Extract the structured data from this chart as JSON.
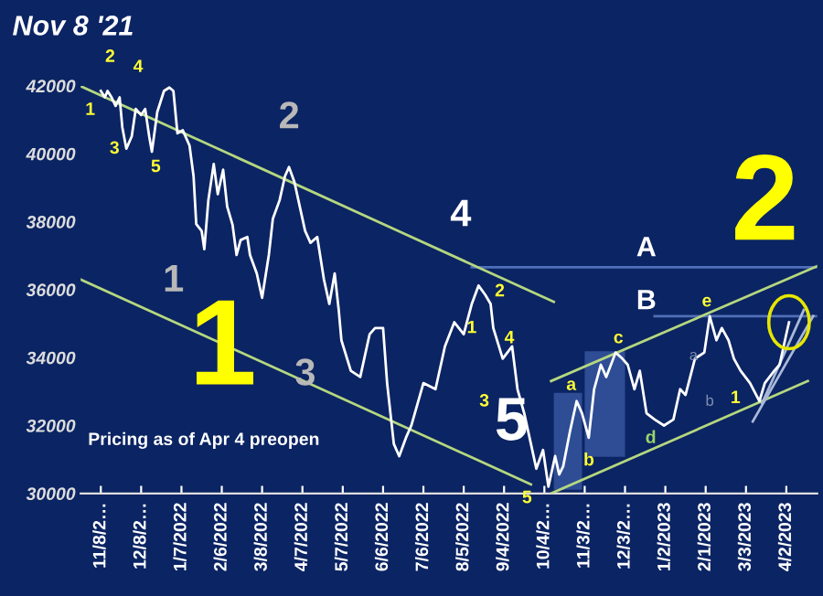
{
  "chart_data": {
    "type": "line",
    "title": "Nov 8 '21",
    "xlim": [
      "2021-10-24",
      "2023-04-25"
    ],
    "ylim": [
      30000,
      42000
    ],
    "yticks": [
      30000,
      32000,
      34000,
      36000,
      38000,
      40000,
      42000
    ],
    "xticks": [
      {
        "value": "2021-11-08",
        "label": "11/8/2…"
      },
      {
        "value": "2021-12-08",
        "label": "12/8/2…"
      },
      {
        "value": "2022-01-07",
        "label": "1/7/2022"
      },
      {
        "value": "2022-02-06",
        "label": "2/6/2022"
      },
      {
        "value": "2022-03-08",
        "label": "3/8/2022"
      },
      {
        "value": "2022-04-07",
        "label": "4/7/2022"
      },
      {
        "value": "2022-05-07",
        "label": "5/7/2022"
      },
      {
        "value": "2022-06-06",
        "label": "6/6/2022"
      },
      {
        "value": "2022-07-06",
        "label": "7/6/2022"
      },
      {
        "value": "2022-08-05",
        "label": "8/5/2022"
      },
      {
        "value": "2022-09-04",
        "label": "9/4/2022"
      },
      {
        "value": "2022-10-04",
        "label": "10/4/2…"
      },
      {
        "value": "2022-11-03",
        "label": "11/3/2…"
      },
      {
        "value": "2022-12-03",
        "label": "12/3/2…"
      },
      {
        "value": "2023-01-02",
        "label": "1/2/2023"
      },
      {
        "value": "2023-02-01",
        "label": "2/1/2023"
      },
      {
        "value": "2023-03-03",
        "label": "3/3/2023"
      },
      {
        "value": "2023-04-02",
        "label": "4/2/2023"
      }
    ],
    "grid": false,
    "legend": false,
    "marker": "none",
    "line_style": "solid",
    "series": [
      {
        "color": "#3b5ba5",
        "x": [
          "2022-10-11",
          "2022-11-01"
        ],
        "values": [
          null,
          null
        ],
        "lower": [
          30110,
          30110
        ],
        "upper": [
          32960,
          32960
        ]
      },
      {
        "color": "#3b5ba5",
        "x": [
          "2022-11-03",
          "2022-12-03"
        ],
        "values": [
          null,
          null
        ],
        "lower": [
          31080,
          31080
        ],
        "upper": [
          34190,
          34190
        ]
      },
      {
        "color": "#4f6fb8",
        "x": [
          "2022-08-11",
          "2023-04-25"
        ],
        "values": [
          36660,
          36660
        ]
      },
      {
        "color": "#4f6fb8",
        "x": [
          "2022-12-25",
          "2023-04-25"
        ],
        "values": [
          35220,
          35220
        ]
      },
      {
        "color": "#b5d77f",
        "x": [
          "2021-10-24",
          "2022-10-11"
        ],
        "values": [
          41990,
          35640
        ]
      },
      {
        "color": "#b5d77f",
        "x": [
          "2021-10-24",
          "2022-09-24"
        ],
        "values": [
          36300,
          30270
        ]
      },
      {
        "color": "#b5d77f",
        "x": [
          "2022-10-09",
          "2023-04-25"
        ],
        "values": [
          33310,
          36690
        ]
      },
      {
        "color": "#b5d77f",
        "x": [
          "2022-10-09",
          "2023-04-18"
        ],
        "values": [
          30000,
          33310
        ]
      },
      {
        "color": "#a9b8d8",
        "x": [
          "2023-03-08",
          "2023-04-22"
        ],
        "values": [
          32120,
          35220
        ]
      },
      {
        "color": "#a9b8d8",
        "x": [
          "2023-03-15",
          "2023-04-15"
        ],
        "values": [
          32660,
          35400
        ]
      },
      {
        "color": "#ffffff",
        "x": [
          "2021-11-08",
          "2021-11-11",
          "2021-11-13",
          "2021-11-16",
          "2021-11-19",
          "2021-11-22",
          "2021-11-24",
          "2021-11-27",
          "2021-12-01",
          "2021-12-04",
          "2021-12-08",
          "2021-12-11",
          "2021-12-14",
          "2021-12-16",
          "2021-12-20",
          "2021-12-25",
          "2021-12-29",
          "2022-01-01",
          "2022-01-04",
          "2022-01-08",
          "2022-01-13",
          "2022-01-16",
          "2022-01-18",
          "2022-01-22",
          "2022-01-24",
          "2022-01-27",
          "2022-01-31",
          "2022-02-03",
          "2022-02-07",
          "2022-02-10",
          "2022-02-14",
          "2022-02-17",
          "2022-02-20",
          "2022-02-25",
          "2022-02-27",
          "2022-03-04",
          "2022-03-08",
          "2022-03-13",
          "2022-03-16",
          "2022-03-21",
          "2022-03-25",
          "2022-03-28",
          "2022-04-01",
          "2022-04-04",
          "2022-04-09",
          "2022-04-13",
          "2022-04-18",
          "2022-04-23",
          "2022-04-27",
          "2022-05-01",
          "2022-05-04",
          "2022-05-06",
          "2022-05-13",
          "2022-05-20",
          "2022-05-27",
          "2022-05-31",
          "2022-06-06",
          "2022-06-09",
          "2022-06-14",
          "2022-06-18",
          "2022-06-23",
          "2022-06-27",
          "2022-07-06",
          "2022-07-15",
          "2022-07-22",
          "2022-07-29",
          "2022-08-05",
          "2022-08-11",
          "2022-08-16",
          "2022-08-21",
          "2022-08-25",
          "2022-08-27",
          "2022-09-03",
          "2022-09-10",
          "2022-09-14",
          "2022-09-19",
          "2022-09-24",
          "2022-09-28",
          "2022-10-03",
          "2022-10-07",
          "2022-10-12",
          "2022-10-15",
          "2022-10-18",
          "2022-10-23",
          "2022-10-28",
          "2022-11-01",
          "2022-11-06",
          "2022-11-10",
          "2022-11-15",
          "2022-11-19",
          "2022-11-26",
          "2022-12-01",
          "2022-12-05",
          "2022-12-10",
          "2022-12-14",
          "2022-12-19",
          "2022-12-25",
          "2023-01-01",
          "2023-01-08",
          "2023-01-13",
          "2023-01-17",
          "2023-01-24",
          "2023-01-31",
          "2023-02-04",
          "2023-02-09",
          "2023-02-13",
          "2023-02-18",
          "2023-02-22",
          "2023-02-27",
          "2023-03-06",
          "2023-03-13",
          "2023-03-17",
          "2023-03-24",
          "2023-03-28",
          "2023-04-02",
          "2023-04-04"
        ],
        "values": [
          41850,
          41660,
          41850,
          41660,
          41410,
          41660,
          40780,
          40150,
          40510,
          41320,
          41140,
          41320,
          40510,
          40060,
          41230,
          41850,
          41950,
          41850,
          40600,
          40690,
          40240,
          39340,
          37930,
          37730,
          37190,
          38630,
          39700,
          38810,
          39530,
          38450,
          37910,
          37020,
          37460,
          37550,
          37020,
          36480,
          35760,
          37020,
          38090,
          38630,
          39340,
          39610,
          39170,
          38630,
          37730,
          37380,
          37550,
          36300,
          35580,
          36480,
          35400,
          34510,
          33610,
          33430,
          34690,
          34870,
          34870,
          33250,
          31460,
          31100,
          31640,
          32000,
          33250,
          33070,
          34330,
          35040,
          34690,
          35580,
          36120,
          35850,
          35580,
          34870,
          33970,
          34330,
          33070,
          32360,
          31460,
          30730,
          31280,
          30200,
          31100,
          30560,
          30800,
          31820,
          32720,
          32360,
          31640,
          33070,
          33790,
          33430,
          34150,
          33970,
          33790,
          33070,
          33610,
          32360,
          32180,
          32000,
          32180,
          33070,
          32900,
          33970,
          34150,
          35220,
          34510,
          34870,
          34510,
          33970,
          33610,
          33250,
          32720,
          33250,
          33610,
          33790,
          34690,
          35040
        ]
      }
    ],
    "annotations": [
      "Pricing as of Apr 4 preopen",
      "1",
      "2",
      "3",
      "4",
      "5",
      "1",
      "2",
      "3",
      "4",
      "5",
      "1",
      "2",
      "A",
      "B",
      "1",
      "2",
      "3",
      "4",
      "5",
      "a",
      "b",
      "c",
      "d",
      "e",
      "1",
      "a",
      "b"
    ]
  }
}
